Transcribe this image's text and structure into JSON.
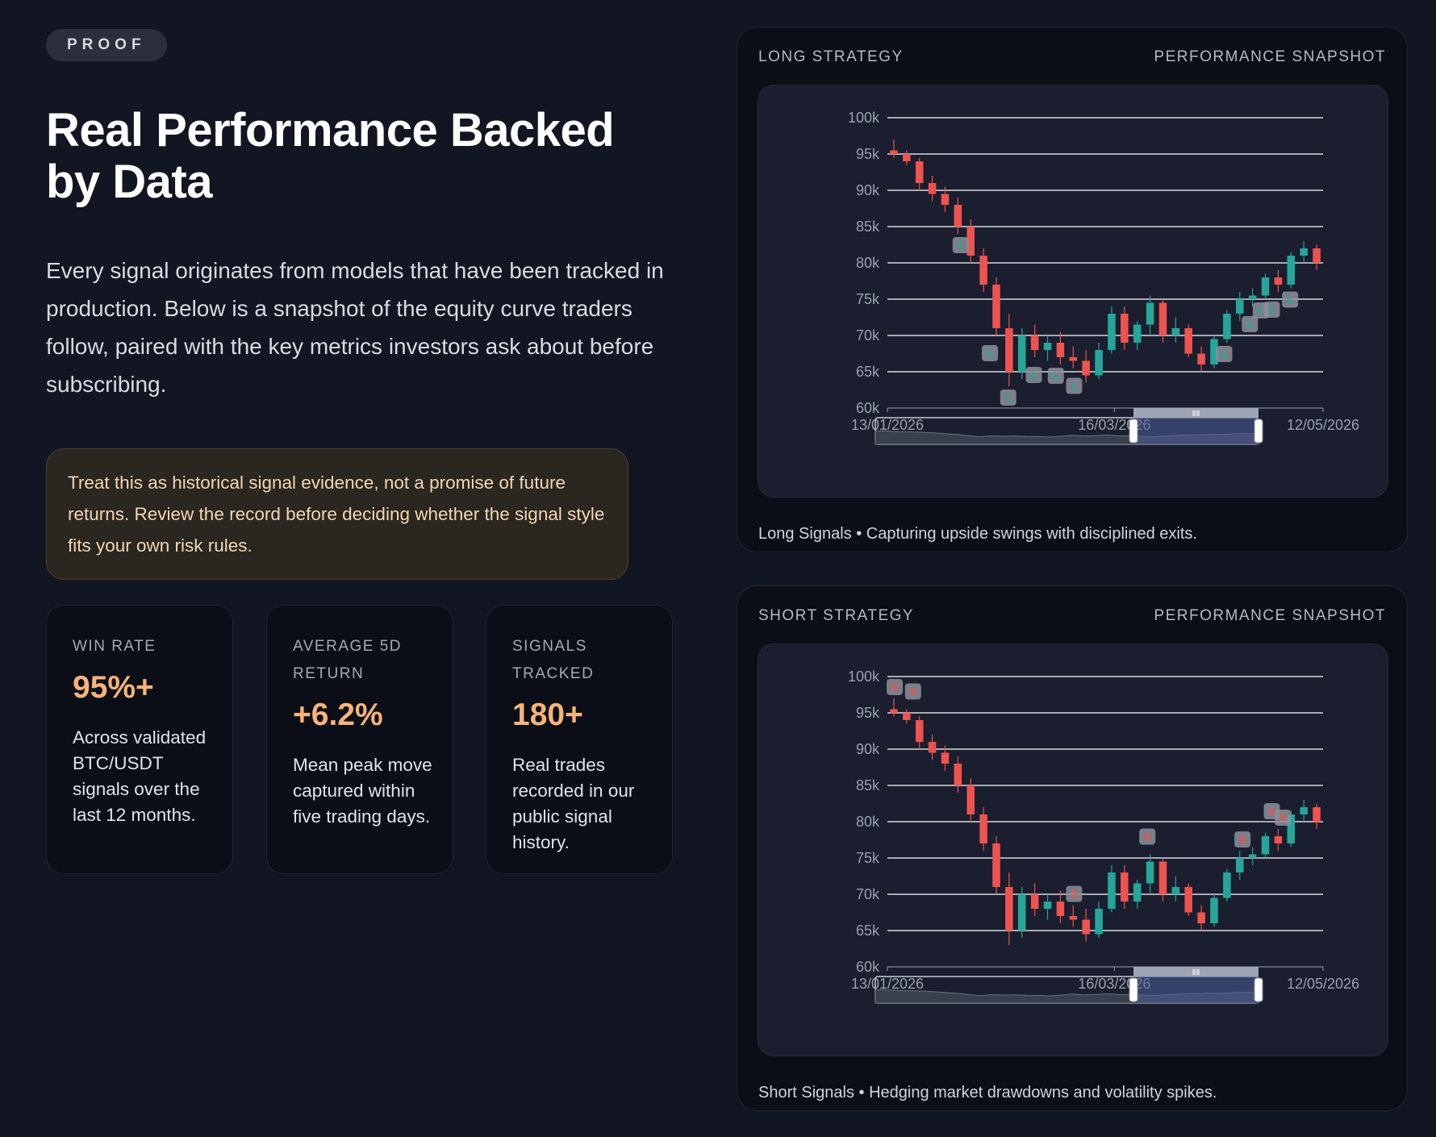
{
  "badge": "PROOF",
  "headline": "Real Performance Backed by Data",
  "intro": "Every signal originates from models that have been tracked in production. Below is a snapshot of the equity curve traders follow, paired with the key metrics investors ask about before subscribing.",
  "notice": "Treat this as historical signal evidence, not a promise of future returns. Review the record before deciding whether the signal style fits your own risk rules.",
  "stats": [
    {
      "label": "WIN RATE",
      "value": "95%+",
      "desc": "Across validated BTC/USDT signals over the last 12 months."
    },
    {
      "label": "AVERAGE 5D RETURN",
      "value": "+6.2%",
      "desc": "Mean peak move captured within five trading days."
    },
    {
      "label": "SIGNALS TRACKED",
      "value": "180+",
      "desc": "Real trades recorded in our public signal history."
    }
  ],
  "colors": {
    "accent": "#f6b37a",
    "up": "#26a69a",
    "down": "#ef5350",
    "grid": "#ffffff"
  },
  "panels": [
    {
      "title": "LONG STRATEGY",
      "subtitle": "PERFORMANCE SNAPSHOT",
      "caption": "Long Signals • Capturing upside swings with disciplined exits.",
      "marker_label": "L"
    },
    {
      "title": "SHORT STRATEGY",
      "subtitle": "PERFORMANCE SNAPSHOT",
      "caption": "Short Signals • Hedging market drawdowns and volatility spikes.",
      "marker_label": "S"
    }
  ],
  "chart_data": [
    {
      "type": "candlestick",
      "title": "",
      "yticks": [
        "100k",
        "95k",
        "90k",
        "85k",
        "80k",
        "75k",
        "70k",
        "65k",
        "60k"
      ],
      "ylim": [
        60000,
        100000
      ],
      "xticks": [
        "13/01/2026",
        "16/03/2026",
        "12/05/2026"
      ],
      "xlim": [
        "13/01/2026",
        "12/05/2026"
      ],
      "grid": true,
      "navigator": true,
      "series": [
        {
          "values": [
            [
              95500,
              97000,
              94500,
              95000
            ],
            [
              95000,
              95500,
              93500,
              94000
            ],
            [
              94000,
              94500,
              90000,
              91000
            ],
            [
              91000,
              92000,
              88500,
              89500
            ],
            [
              89500,
              90500,
              87000,
              88000
            ],
            [
              88000,
              89000,
              84000,
              85000
            ],
            [
              85000,
              86000,
              80000,
              81000
            ],
            [
              81000,
              82000,
              76000,
              77000
            ],
            [
              77000,
              78000,
              70000,
              71000
            ],
            [
              71000,
              73000,
              63000,
              65000
            ],
            [
              65000,
              71000,
              64000,
              70000
            ],
            [
              70000,
              71500,
              67000,
              68000
            ],
            [
              68000,
              70000,
              66500,
              69000
            ],
            [
              69000,
              70500,
              66000,
              67000
            ],
            [
              67000,
              68500,
              65500,
              66500
            ],
            [
              66500,
              68000,
              63500,
              64500
            ],
            [
              64500,
              69000,
              64000,
              68000
            ],
            [
              68000,
              74000,
              67500,
              73000
            ],
            [
              73000,
              74000,
              68000,
              69000
            ],
            [
              69000,
              72000,
              68000,
              71500
            ],
            [
              71500,
              75500,
              70000,
              74500
            ],
            [
              74500,
              75000,
              69000,
              70000
            ],
            [
              70000,
              72500,
              69000,
              71000
            ],
            [
              71000,
              71500,
              67000,
              67500
            ],
            [
              67500,
              68500,
              65000,
              66000
            ],
            [
              66000,
              70000,
              65500,
              69500
            ],
            [
              69500,
              73500,
              69000,
              73000
            ],
            [
              73000,
              76000,
              72000,
              75000
            ],
            [
              75000,
              76500,
              74000,
              75500
            ],
            [
              75500,
              78500,
              75000,
              78000
            ],
            [
              78000,
              79000,
              76000,
              77000
            ],
            [
              77000,
              81500,
              76500,
              81000
            ],
            [
              81000,
              83000,
              80000,
              82000
            ],
            [
              82000,
              82500,
              79000,
              80000
            ]
          ]
        },
        {
          "markers_long": [
            "02/02/2026",
            "10/02/2026",
            "15/02/2026",
            "22/02/2026",
            "28/02/2026",
            "05/03/2026",
            "15/04/2026",
            "22/04/2026",
            "25/04/2026",
            "28/04/2026",
            "03/05/2026"
          ]
        },
        {
          "markers_short": [
            "15/01/2026",
            "20/01/2026",
            "05/03/2026",
            "25/03/2026",
            "20/04/2026",
            "28/04/2026",
            "01/05/2026"
          ]
        }
      ]
    }
  ]
}
